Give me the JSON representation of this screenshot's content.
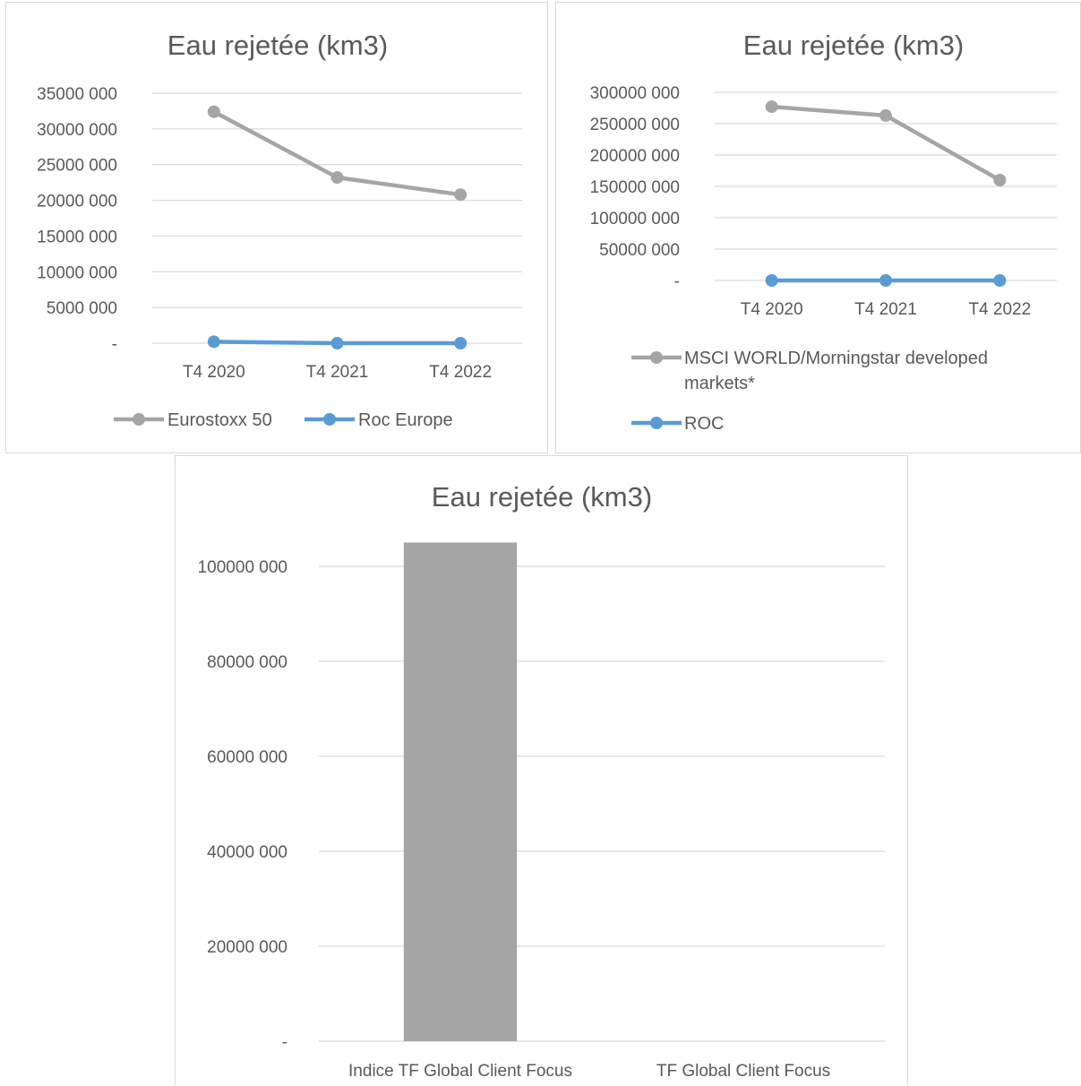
{
  "colors": {
    "grey_series": "#a5a5a5",
    "blue_series": "#5b9bd5",
    "gridline": "#d9d9d9",
    "text": "#595959"
  },
  "chart_data": [
    {
      "type": "line",
      "title": "Eau rejetée (km3)",
      "categories": [
        "T4 2020",
        "T4 2021",
        "T4 2022"
      ],
      "ylim": [
        0,
        35000000
      ],
      "y_ticks": [
        0,
        5000000,
        10000000,
        15000000,
        20000000,
        25000000,
        30000000,
        35000000
      ],
      "y_tick_labels": [
        "-",
        "5000 000",
        "10000 000",
        "15000 000",
        "20000 000",
        "25000 000",
        "30000 000",
        "35000 000"
      ],
      "grid": true,
      "legend_position": "bottom",
      "series": [
        {
          "name": "Eurostoxx 50",
          "values": [
            32400000,
            23200000,
            20800000
          ],
          "color": "#a5a5a5"
        },
        {
          "name": "Roc Europe",
          "values": [
            200000,
            0,
            0
          ],
          "color": "#5b9bd5"
        }
      ]
    },
    {
      "type": "line",
      "title": "Eau rejetée (km3)",
      "categories": [
        "T4 2020",
        "T4 2021",
        "T4 2022"
      ],
      "ylim": [
        0,
        300000000
      ],
      "y_ticks": [
        0,
        50000000,
        100000000,
        150000000,
        200000000,
        250000000,
        300000000
      ],
      "y_tick_labels": [
        "-",
        "50000 000",
        "100000 000",
        "150000 000",
        "200000 000",
        "250000 000",
        "300000 000"
      ],
      "grid": true,
      "legend_position": "bottom",
      "series": [
        {
          "name": "MSCI WORLD/Morningstar developed markets*",
          "name_lines": [
            "MSCI WORLD/Morningstar developed",
            "markets*"
          ],
          "values": [
            277000000,
            263000000,
            160000000
          ],
          "color": "#a5a5a5"
        },
        {
          "name": "ROC",
          "values": [
            0,
            0,
            0
          ],
          "color": "#5b9bd5"
        }
      ]
    },
    {
      "type": "bar",
      "title": "Eau rejetée (km3)",
      "categories": [
        "Indice TF Global Client Focus",
        "TF Global Client Focus"
      ],
      "values": [
        105000000,
        0
      ],
      "ylim": [
        0,
        100000000
      ],
      "y_ticks": [
        0,
        20000000,
        40000000,
        60000000,
        80000000,
        100000000
      ],
      "y_tick_labels": [
        "-",
        "20000 000",
        "40000 000",
        "60000 000",
        "80000 000",
        "100000 000"
      ],
      "grid": true,
      "color": "#a5a5a5"
    }
  ]
}
